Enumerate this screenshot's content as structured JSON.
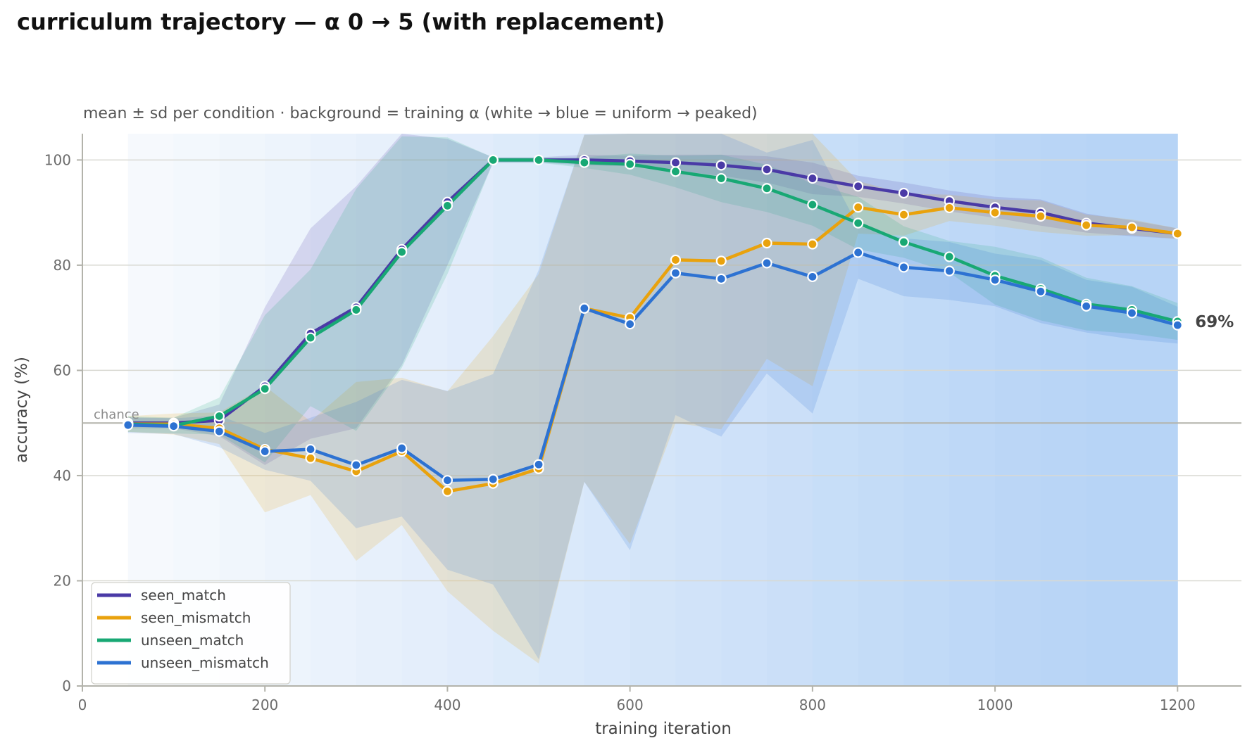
{
  "chart_data": {
    "type": "line",
    "title": "curriculum trajectory — α 0 → 5 (with replacement)",
    "subtitle": "mean ± sd per condition · background = training α (white → blue = uniform → peaked)",
    "xlabel": "training iteration",
    "ylabel": "accuracy (%)",
    "xlim": [
      0,
      1270
    ],
    "ylim": [
      0,
      105
    ],
    "xticks": [
      0,
      200,
      400,
      600,
      800,
      1000,
      1200
    ],
    "yticks": [
      0,
      20,
      40,
      60,
      80,
      100
    ],
    "grid": "horizontal",
    "legend_position": "bottom-left",
    "chance": {
      "label": "chance",
      "value": 50
    },
    "end_annotation": {
      "text": "69%",
      "series": "unseen_match"
    },
    "x": [
      50,
      100,
      150,
      200,
      250,
      300,
      350,
      400,
      450,
      500,
      550,
      600,
      650,
      700,
      750,
      800,
      850,
      900,
      950,
      1000,
      1050,
      1100,
      1150,
      1200
    ],
    "background_alpha": [
      0,
      0.2,
      0.45,
      0.7,
      0.95,
      1.2,
      1.45,
      1.7,
      1.95,
      2.2,
      2.45,
      2.7,
      2.95,
      3.2,
      3.45,
      3.7,
      3.95,
      4.2,
      4.45,
      4.7,
      4.85,
      5,
      5,
      5
    ],
    "series": [
      {
        "name": "seen_match",
        "color": "#4a3aa6",
        "values": [
          50.0,
          50.0,
          50.5,
          57.0,
          67.0,
          72.0,
          83.0,
          92.0,
          100,
          100,
          100,
          99.8,
          99.5,
          99.0,
          98.2,
          96.5,
          95.0,
          93.7,
          92.2,
          91.0,
          90.0,
          88.0,
          87.0,
          86.0
        ],
        "sd": [
          1.0,
          1.0,
          3.0,
          15.0,
          20.0,
          23.0,
          22.0,
          12.0,
          0.5,
          0.5,
          1.0,
          1.0,
          1.5,
          2.0,
          2.5,
          3.0,
          2.0,
          2.0,
          2.0,
          2.0,
          2.5,
          1.8,
          1.5,
          1.0
        ]
      },
      {
        "name": "seen_mismatch",
        "color": "#e9a20d",
        "values": [
          49.8,
          49.8,
          49.0,
          45.0,
          43.3,
          40.8,
          44.6,
          37.0,
          38.5,
          41.3,
          71.8,
          70.0,
          81.0,
          80.8,
          84.2,
          84.0,
          91.0,
          89.6,
          90.9,
          90.0,
          89.3,
          87.6,
          87.2,
          86.0
        ],
        "sd": [
          1.5,
          2.0,
          3.0,
          12.0,
          7.0,
          17.0,
          14.0,
          19.0,
          28.0,
          37.0,
          33.0,
          43.0,
          31.0,
          32.0,
          22.0,
          27.0,
          5.0,
          4.0,
          2.5,
          2.5,
          3.0,
          2.0,
          1.5,
          1.0
        ]
      },
      {
        "name": "unseen_match",
        "color": "#18a874",
        "values": [
          49.8,
          49.5,
          51.3,
          56.5,
          66.2,
          71.5,
          82.5,
          91.3,
          100,
          100,
          99.5,
          99.2,
          97.8,
          96.5,
          94.6,
          91.5,
          88.0,
          84.4,
          81.6,
          78.0,
          75.5,
          72.6,
          71.5,
          69.3
        ],
        "sd": [
          1.5,
          1.5,
          3.5,
          14.0,
          13.0,
          23.0,
          22.0,
          13.0,
          0.5,
          0.5,
          1.0,
          2.0,
          3.0,
          4.5,
          4.5,
          4.0,
          5.0,
          3.0,
          3.0,
          5.5,
          6.0,
          5.0,
          4.5,
          3.5
        ]
      },
      {
        "name": "unseen_mismatch",
        "color": "#2d72d2",
        "values": [
          49.6,
          49.4,
          48.4,
          44.6,
          45.0,
          42.0,
          45.2,
          39.1,
          39.3,
          42.1,
          71.8,
          68.8,
          78.5,
          77.4,
          80.4,
          77.8,
          82.4,
          79.6,
          78.9,
          77.2,
          75.0,
          72.2,
          70.9,
          68.6
        ],
        "sd": [
          1.5,
          1.5,
          3.0,
          3.5,
          6.0,
          12.0,
          13.0,
          17.0,
          20.0,
          37.0,
          33.0,
          43.0,
          27.0,
          30.0,
          21.0,
          26.0,
          5.0,
          5.5,
          5.5,
          5.0,
          6.0,
          5.0,
          5.0,
          3.5
        ]
      }
    ]
  }
}
